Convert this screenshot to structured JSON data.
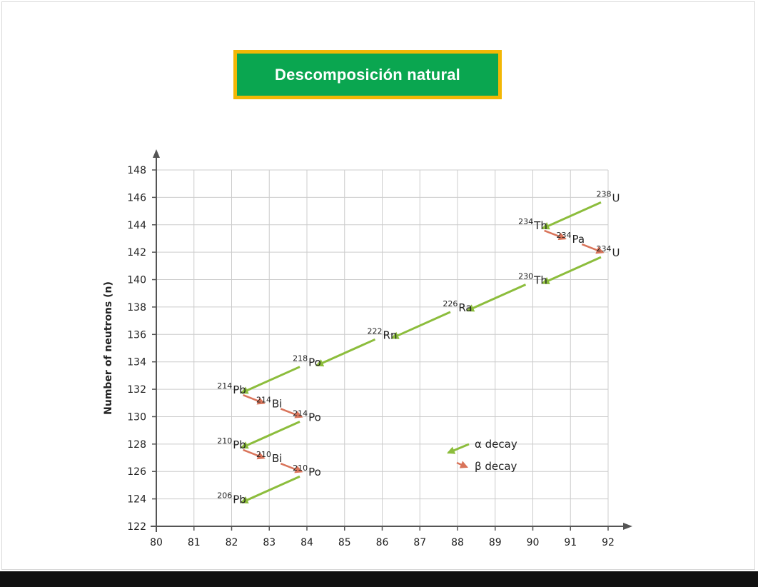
{
  "title": "Descomposición natural",
  "colors": {
    "title_bg": "#0aa650",
    "title_border": "#f2b705",
    "alpha_arrow": "#8cbd3c",
    "beta_arrow": "#d9745a",
    "grid": "#cccccc"
  },
  "chart_data": {
    "type": "line",
    "xlabel": "",
    "ylabel": "Number of neutrons (n)",
    "xlim": [
      80,
      92
    ],
    "ylim": [
      122,
      148
    ],
    "x_ticks": [
      "80",
      "81",
      "82",
      "83",
      "84",
      "85",
      "86",
      "87",
      "88",
      "89",
      "90",
      "91",
      "92"
    ],
    "y_ticks": [
      "122",
      "124",
      "126",
      "128",
      "130",
      "132",
      "134",
      "136",
      "138",
      "140",
      "142",
      "144",
      "146",
      "148"
    ],
    "grid": true,
    "legend": {
      "placement": "bottom-right",
      "entries": [
        {
          "name": "α decay",
          "kind": "alpha"
        },
        {
          "name": "β decay",
          "kind": "beta"
        }
      ]
    },
    "nuclides": [
      {
        "mass": "238",
        "symbol": "U",
        "z": 92,
        "n": 146
      },
      {
        "mass": "234",
        "symbol": "Th",
        "z": 90,
        "n": 144
      },
      {
        "mass": "234",
        "symbol": "Pa",
        "z": 91,
        "n": 143
      },
      {
        "mass": "234",
        "symbol": "U",
        "z": 92,
        "n": 142
      },
      {
        "mass": "230",
        "symbol": "Th",
        "z": 90,
        "n": 140
      },
      {
        "mass": "226",
        "symbol": "Ra",
        "z": 88,
        "n": 138
      },
      {
        "mass": "222",
        "symbol": "Rn",
        "z": 86,
        "n": 136
      },
      {
        "mass": "218",
        "symbol": "Po",
        "z": 84,
        "n": 134
      },
      {
        "mass": "214",
        "symbol": "Pb",
        "z": 82,
        "n": 132
      },
      {
        "mass": "214",
        "symbol": "Bi",
        "z": 83,
        "n": 131
      },
      {
        "mass": "214",
        "symbol": "Po",
        "z": 84,
        "n": 130
      },
      {
        "mass": "210",
        "symbol": "Pb",
        "z": 82,
        "n": 128
      },
      {
        "mass": "210",
        "symbol": "Bi",
        "z": 83,
        "n": 127
      },
      {
        "mass": "210",
        "symbol": "Po",
        "z": 84,
        "n": 126
      },
      {
        "mass": "206",
        "symbol": "Pb",
        "z": 82,
        "n": 124
      }
    ],
    "decays": [
      {
        "kind": "alpha",
        "from": [
          92,
          146
        ],
        "to": [
          90,
          144
        ]
      },
      {
        "kind": "beta",
        "from": [
          90,
          144
        ],
        "to": [
          91,
          143
        ]
      },
      {
        "kind": "beta",
        "from": [
          91,
          143
        ],
        "to": [
          92,
          142
        ]
      },
      {
        "kind": "alpha",
        "from": [
          92,
          142
        ],
        "to": [
          90,
          140
        ]
      },
      {
        "kind": "alpha",
        "from": [
          90,
          140
        ],
        "to": [
          88,
          138
        ]
      },
      {
        "kind": "alpha",
        "from": [
          88,
          138
        ],
        "to": [
          86,
          136
        ]
      },
      {
        "kind": "alpha",
        "from": [
          86,
          136
        ],
        "to": [
          84,
          134
        ]
      },
      {
        "kind": "alpha",
        "from": [
          84,
          134
        ],
        "to": [
          82,
          132
        ]
      },
      {
        "kind": "beta",
        "from": [
          82,
          132
        ],
        "to": [
          83,
          131
        ]
      },
      {
        "kind": "beta",
        "from": [
          83,
          131
        ],
        "to": [
          84,
          130
        ]
      },
      {
        "kind": "alpha",
        "from": [
          84,
          130
        ],
        "to": [
          82,
          128
        ]
      },
      {
        "kind": "beta",
        "from": [
          82,
          128
        ],
        "to": [
          83,
          127
        ]
      },
      {
        "kind": "beta",
        "from": [
          83,
          127
        ],
        "to": [
          84,
          126
        ]
      },
      {
        "kind": "alpha",
        "from": [
          84,
          126
        ],
        "to": [
          82,
          124
        ]
      }
    ]
  }
}
